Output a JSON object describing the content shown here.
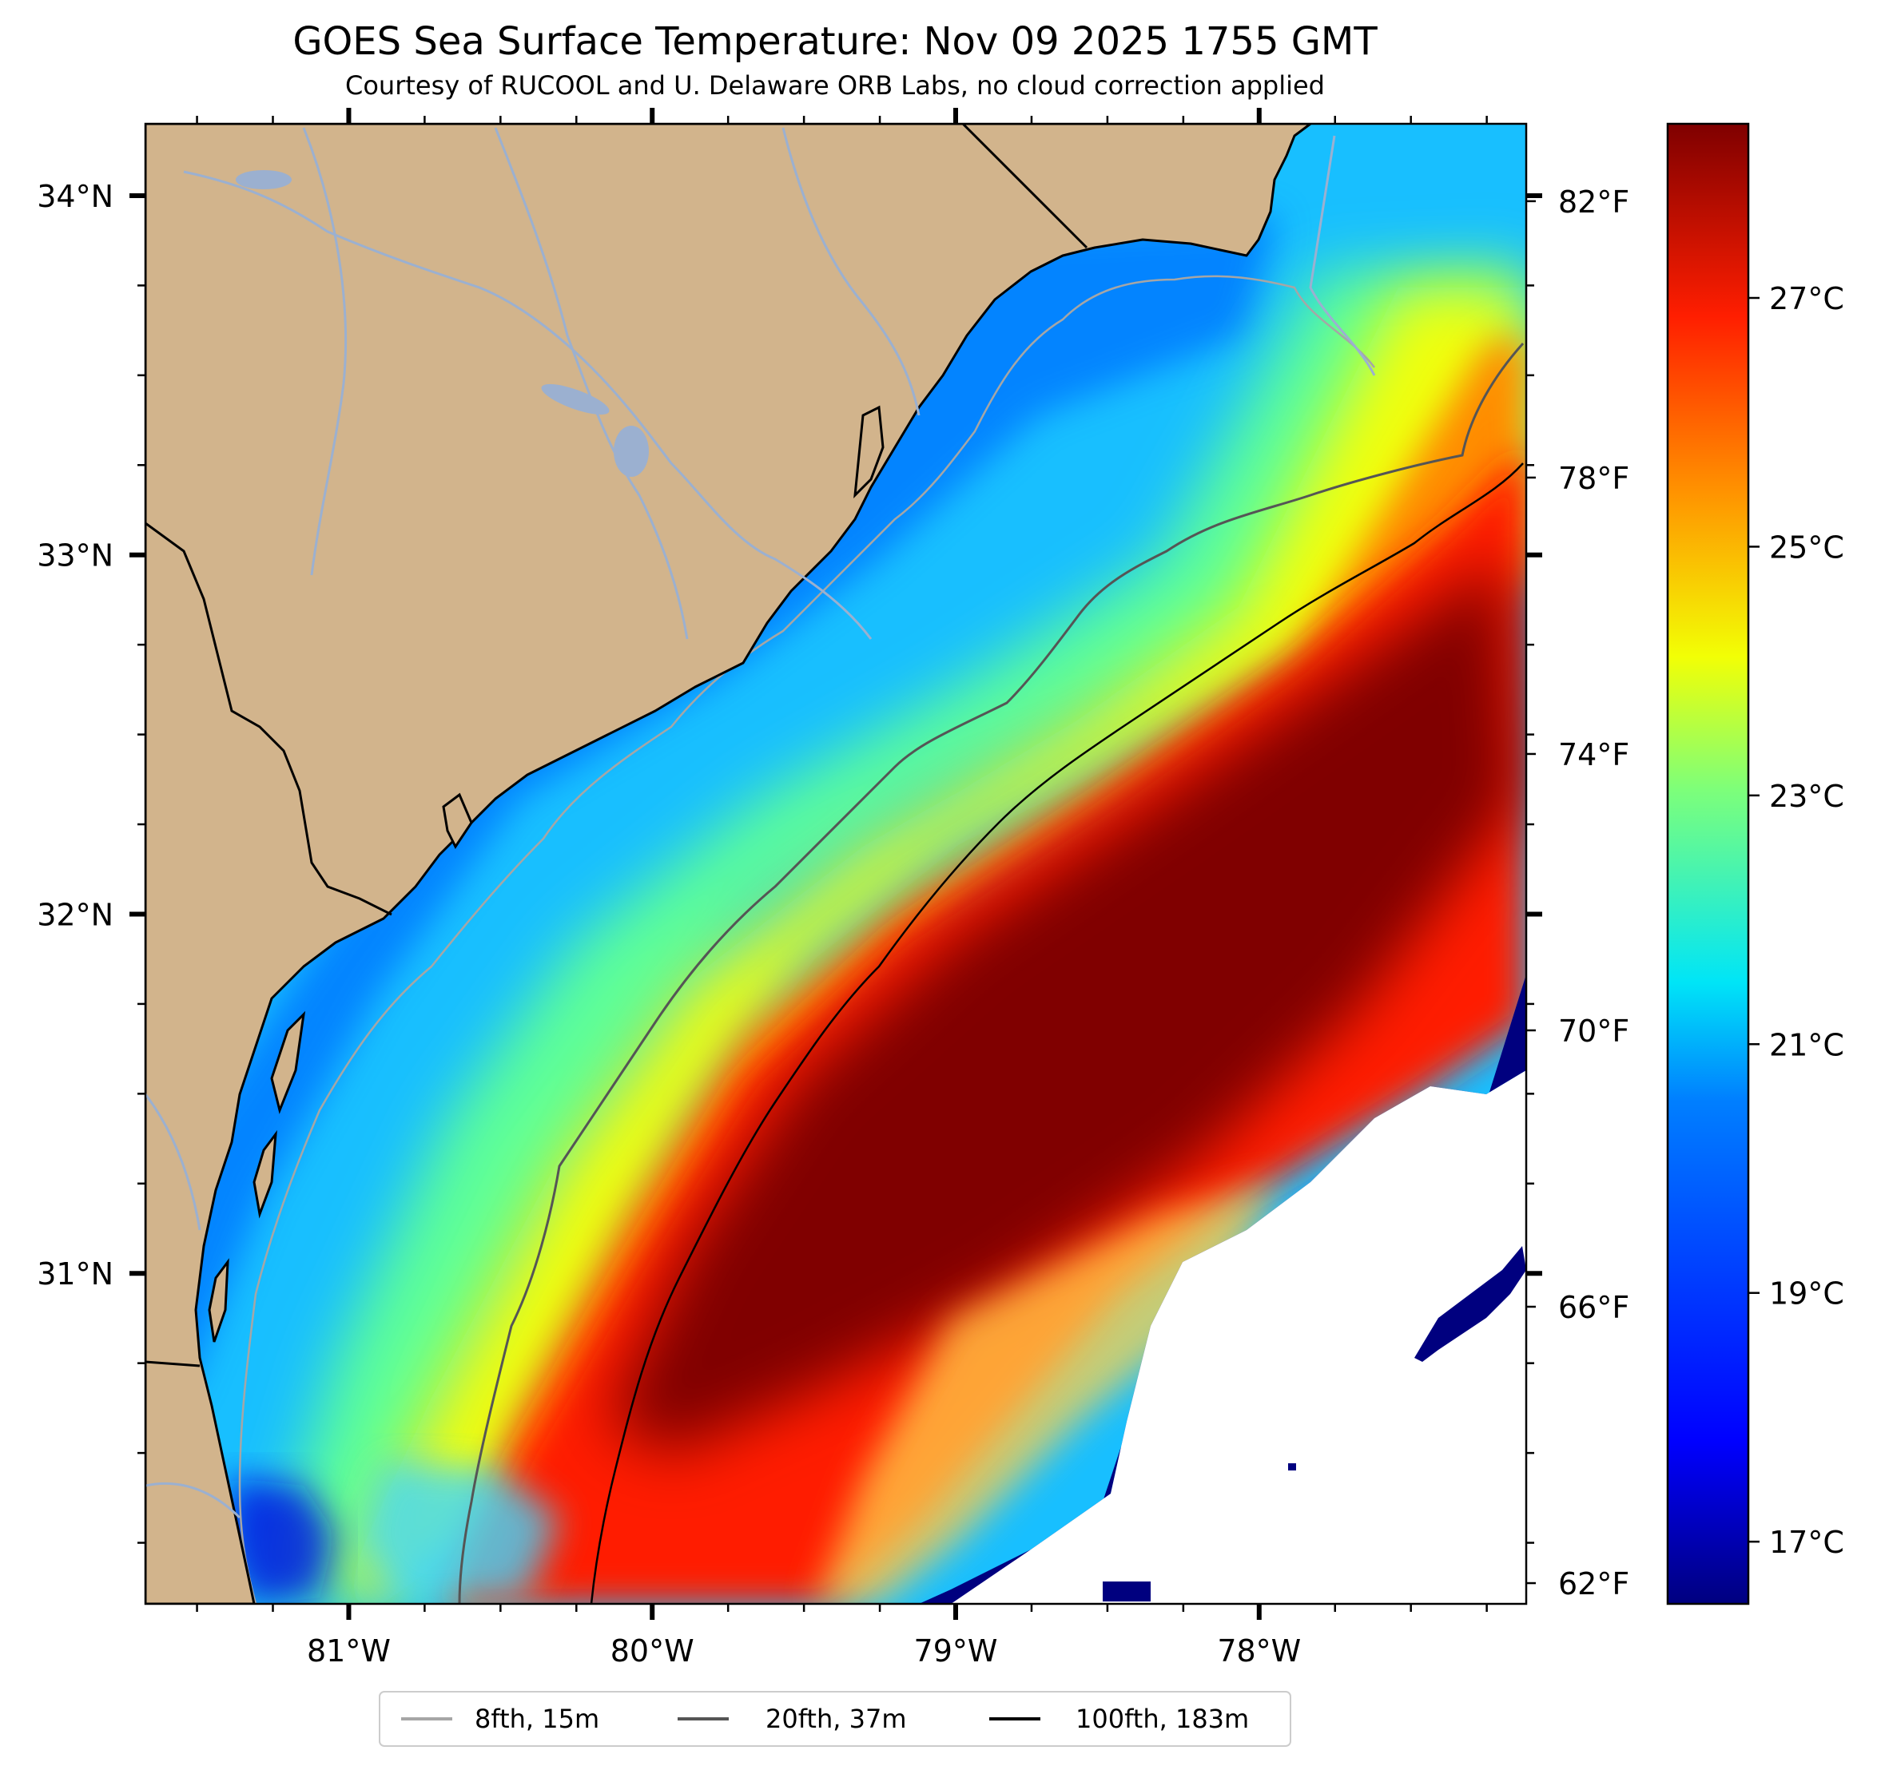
{
  "title": "GOES Sea Surface Temperature: Nov 09 2025 1755 GMT",
  "subtitle": "Courtesy of RUCOOL and U. Delaware ORB Labs, no cloud correction applied",
  "map": {
    "lon_range": [
      -81.67,
      -77.12
    ],
    "lat_range": [
      30.08,
      34.2
    ],
    "lat_ticks": [
      {
        "value": 34,
        "label": "34°N"
      },
      {
        "value": 33,
        "label": "33°N"
      },
      {
        "value": 32,
        "label": "32°N"
      },
      {
        "value": 31,
        "label": "31°N"
      }
    ],
    "lon_ticks": [
      {
        "value": -81,
        "label": "81°W"
      },
      {
        "value": -80,
        "label": "80°W"
      },
      {
        "value": -79,
        "label": "79°W"
      },
      {
        "value": -78,
        "label": "78°W"
      }
    ]
  },
  "colorbar": {
    "celsius_range": [
      16.5,
      28.4
    ],
    "celsius_ticks": [
      {
        "value": 17,
        "label": "17°C"
      },
      {
        "value": 19,
        "label": "19°C"
      },
      {
        "value": 21,
        "label": "21°C"
      },
      {
        "value": 23,
        "label": "23°C"
      },
      {
        "value": 25,
        "label": "25°C"
      },
      {
        "value": 27,
        "label": "27°C"
      }
    ],
    "fahrenheit_ticks": [
      {
        "value": 62,
        "label": "62°F"
      },
      {
        "value": 66,
        "label": "66°F"
      },
      {
        "value": 70,
        "label": "70°F"
      },
      {
        "value": 74,
        "label": "74°F"
      },
      {
        "value": 78,
        "label": "78°F"
      },
      {
        "value": 82,
        "label": "82°F"
      }
    ],
    "colors": [
      "#00007f",
      "#0000ff",
      "#007fff",
      "#00e5f7",
      "#7dff7a",
      "#f2ff05",
      "#ff9400",
      "#ff1e00",
      "#7f0000"
    ]
  },
  "legend": {
    "items": [
      {
        "label": "8fth, 15m",
        "color": "#a6a6a6"
      },
      {
        "label": "20fth, 37m",
        "color": "#555555"
      },
      {
        "label": "100fth, 183m",
        "color": "#000000"
      }
    ]
  },
  "colors": {
    "land": "#d2b48c",
    "river": "#9bb0d0",
    "no_data": "#ffffff"
  }
}
